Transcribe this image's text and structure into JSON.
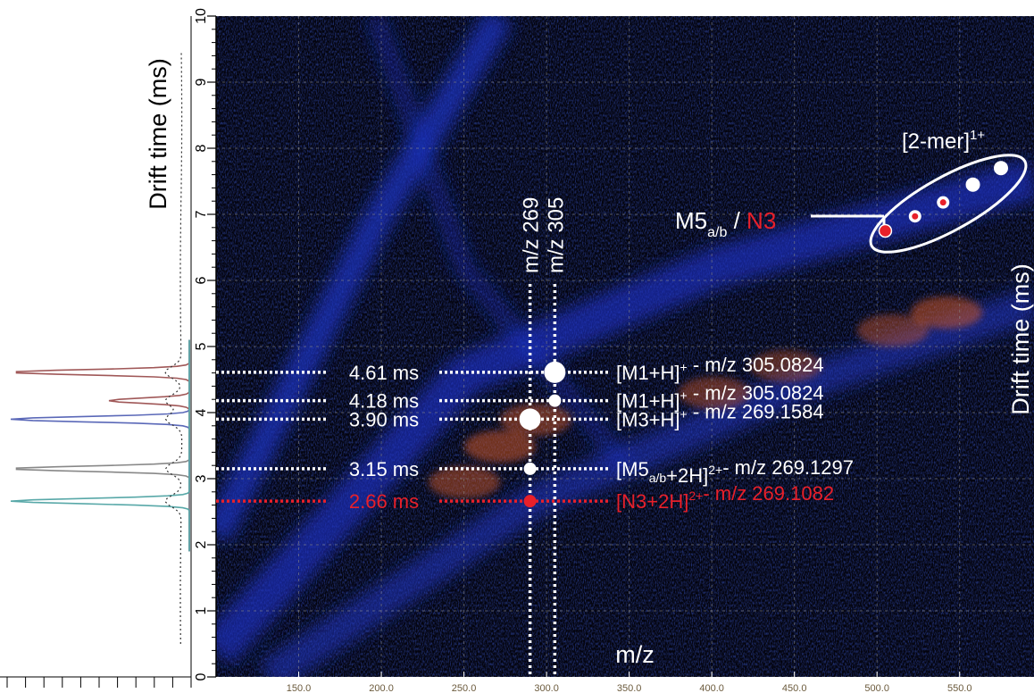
{
  "chart_data": {
    "type": "heatmap",
    "title": "",
    "xlabel": "m/z",
    "ylabel": "Drift time (ms)",
    "ylabel_right": "Drift time (ms)",
    "xlim": [
      100,
      595
    ],
    "ylim": [
      0,
      10
    ],
    "x_ticks": [
      "150.0",
      "200.0",
      "250.0",
      "300.0",
      "350.0",
      "400.0",
      "450.0",
      "500.0",
      "550.0"
    ],
    "x_tick_values": [
      150,
      200,
      250,
      300,
      350,
      400,
      450,
      500,
      550
    ],
    "y_ticks": [
      "0",
      "1",
      "2",
      "3",
      "4",
      "5",
      "6",
      "7",
      "8",
      "9",
      "10"
    ],
    "y_tick_values": [
      0,
      1,
      2,
      3,
      4,
      5,
      6,
      7,
      8,
      9,
      10
    ],
    "grid": true,
    "colors": {
      "background": "#04040e",
      "low": "#1a2ec8",
      "high": "#e06a2a",
      "white_marker": "#ffffff",
      "red_marker": "#e8202a"
    },
    "vertical_lines": [
      {
        "label": "m/z 269",
        "x": 290
      },
      {
        "label": "m/z 305",
        "x": 305
      }
    ],
    "annotations": [
      {
        "drift_label": "4.61 ms",
        "y": 4.61,
        "x": 305,
        "ion_label": "[M1+H]+ - m/z 305.0824",
        "color": "white",
        "size": "large"
      },
      {
        "drift_label": "4.18 ms",
        "y": 4.18,
        "x": 305,
        "ion_label": "[M1+H]+ - m/z 305.0824",
        "color": "white",
        "size": "small"
      },
      {
        "drift_label": "3.90 ms",
        "y": 3.9,
        "x": 290,
        "ion_label": "[M3+H]+ - m/z 269.1584",
        "color": "white",
        "size": "large"
      },
      {
        "drift_label": "3.15 ms",
        "y": 3.15,
        "x": 290,
        "ion_label": "[M5a/b+2H]2+- m/z 269.1297",
        "color": "white",
        "size": "small"
      },
      {
        "drift_label": "2.66 ms",
        "y": 2.66,
        "x": 290,
        "ion_label": "[N3+2H]2+- m/z 269.1082",
        "color": "red",
        "size": "small"
      }
    ],
    "dimer_points": [
      {
        "x": 505,
        "y": 6.75,
        "color": "red"
      },
      {
        "x": 523,
        "y": 6.97,
        "color": "white-ring"
      },
      {
        "x": 540,
        "y": 7.18,
        "color": "white-ring"
      },
      {
        "x": 558,
        "y": 7.45,
        "color": "white"
      },
      {
        "x": 575,
        "y": 7.7,
        "color": "white"
      }
    ],
    "dimer_label": "[2-mer]1+",
    "series_label": {
      "main": "M5",
      "subscript": "a/b",
      "separator": " / ",
      "red": "N3"
    },
    "mobilogram_traces": [
      {
        "color": "#a05858",
        "peaks": [
          4.61,
          4.18
        ]
      },
      {
        "color": "#5a68b8",
        "peaks": [
          3.9
        ]
      },
      {
        "color": "#888888",
        "peaks": [
          3.15
        ]
      },
      {
        "color": "#58a8a8",
        "peaks": [
          2.66
        ]
      }
    ]
  }
}
